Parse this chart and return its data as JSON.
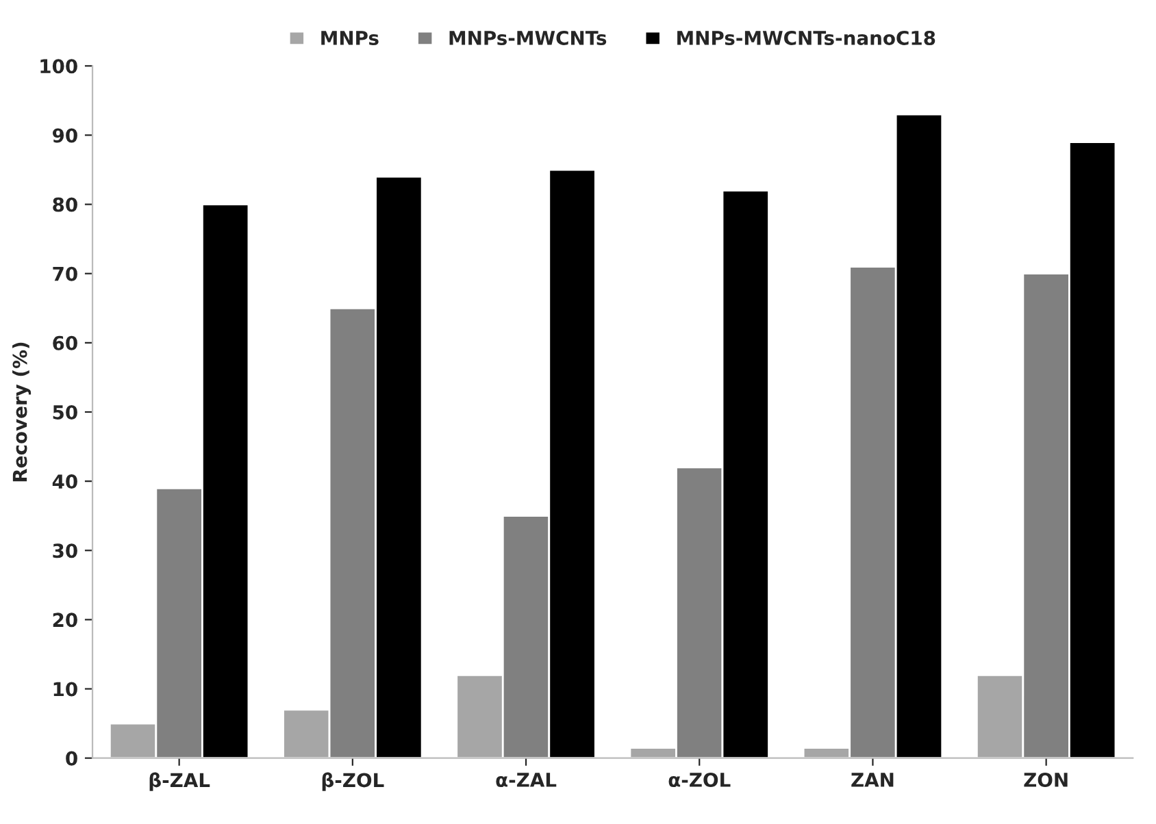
{
  "chart_data": {
    "type": "bar",
    "ylabel": "Recovery (%)",
    "categories": [
      "β-ZAL",
      "β-ZOL",
      "α-ZAL",
      "α-ZOL",
      "ZAN",
      "ZON"
    ],
    "series": [
      {
        "name": "MNPs",
        "color": "#a6a6a6",
        "values": [
          5,
          7,
          12,
          1.5,
          1.5,
          12
        ]
      },
      {
        "name": "MNPs-MWCNTs",
        "color": "#808080",
        "values": [
          39,
          65,
          35,
          42,
          71,
          70
        ]
      },
      {
        "name": "MNPs-MWCNTs-nanoC18",
        "color": "#000000",
        "values": [
          80,
          84,
          85,
          82,
          93,
          89
        ]
      }
    ],
    "ylim": [
      0,
      100
    ],
    "yticks": [
      0,
      10,
      20,
      30,
      40,
      50,
      60,
      70,
      80,
      90,
      100
    ],
    "grid": false,
    "legend": "top"
  }
}
